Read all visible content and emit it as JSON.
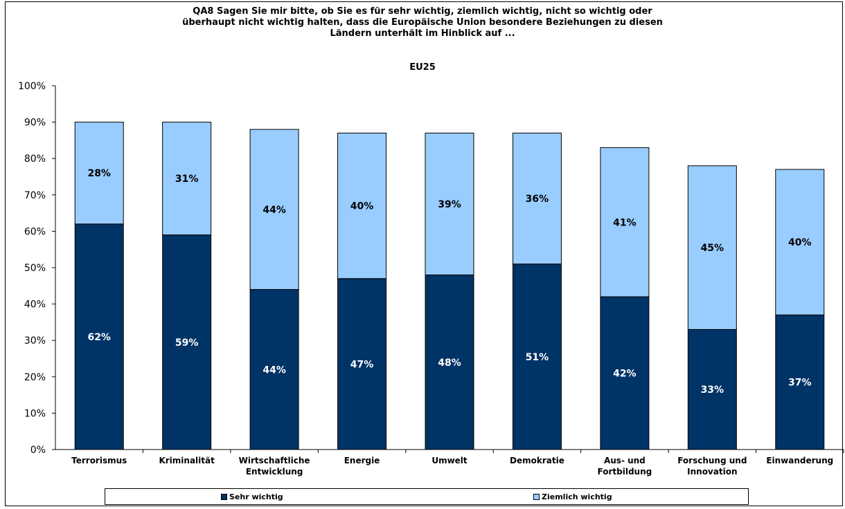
{
  "title_lines": [
    "QA8 Sagen Sie mir bitte, ob Sie es für sehr wichtig, ziemlich wichtig, nicht so wichtig oder",
    "überhaupt nicht wichtig halten, dass die Europäische Union besondere Beziehungen zu diesen",
    "Ländern unterhält im Hinblick auf ..."
  ],
  "subtitle": "EU25",
  "colors": {
    "sehr": "#003366",
    "ziemlich": "#99CCFF",
    "axis": "#000000"
  },
  "chart_data": {
    "type": "bar",
    "stacked": true,
    "title": "QA8 Sagen Sie mir bitte, ob Sie es für sehr wichtig, ziemlich wichtig, nicht so wichtig oder überhaupt nicht wichtig halten, dass die Europäische Union besondere Beziehungen zu diesen Ländern unterhält im Hinblick auf ...",
    "subtitle": "EU25",
    "categories": [
      [
        "Terrorismus"
      ],
      [
        "Kriminalität"
      ],
      [
        "Wirtschaftliche",
        "Entwicklung"
      ],
      [
        "Energie"
      ],
      [
        "Umwelt"
      ],
      [
        "Demokratie"
      ],
      [
        "Aus- und",
        "Fortbildung"
      ],
      [
        "Forschung und",
        "Innovation"
      ],
      [
        "Einwanderung"
      ]
    ],
    "series": [
      {
        "name": "Sehr wichtig",
        "values": [
          62,
          59,
          44,
          47,
          48,
          51,
          42,
          33,
          37
        ],
        "labels": [
          "62%",
          "59%",
          "44%",
          "47%",
          "48%",
          "51%",
          "42%",
          "33%",
          "37%"
        ]
      },
      {
        "name": "Ziemlich wichtig",
        "values": [
          28,
          31,
          44,
          40,
          39,
          36,
          41,
          45,
          40
        ],
        "labels": [
          "28%",
          "31%",
          "44%",
          "40%",
          "39%",
          "36%",
          "41%",
          "45%",
          "40%"
        ]
      }
    ],
    "ylim": [
      0,
      100
    ],
    "yticks": [
      "0%",
      "10%",
      "20%",
      "30%",
      "40%",
      "50%",
      "60%",
      "70%",
      "80%",
      "90%",
      "100%"
    ],
    "grid": false,
    "legend_position": "bottom"
  }
}
